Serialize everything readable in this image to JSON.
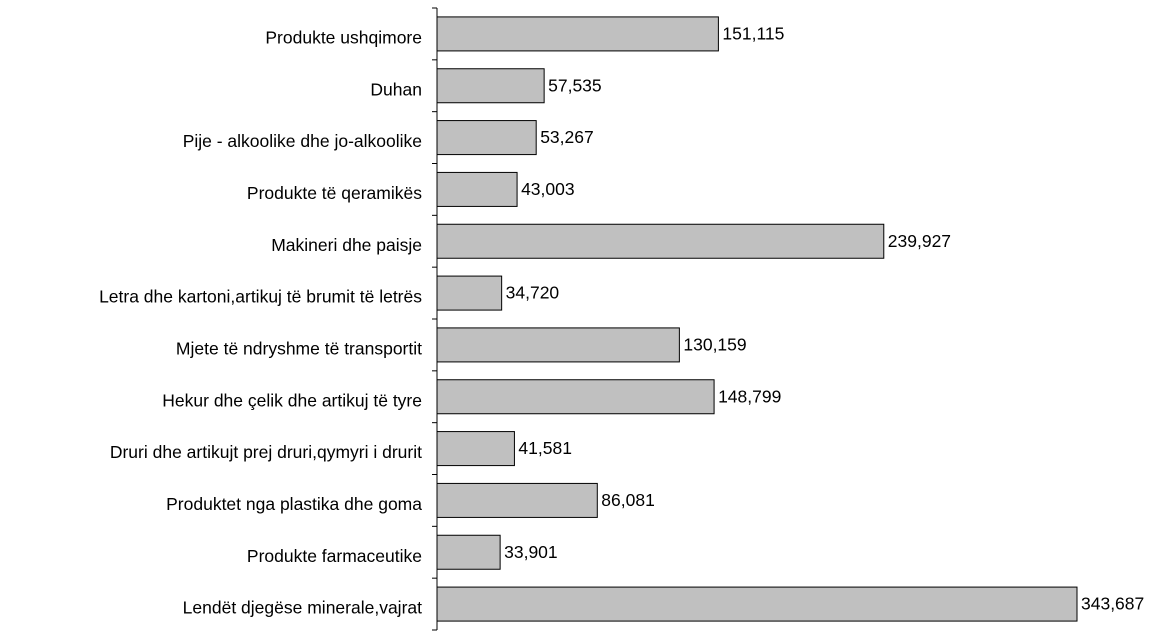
{
  "chart_data": {
    "type": "bar",
    "orientation": "horizontal",
    "categories": [
      "Produkte ushqimore",
      "Duhan",
      "Pije - alkoolike dhe jo-alkoolike",
      "Produkte të qeramikës",
      "Makineri dhe paisje",
      "Letra dhe kartoni,artikuj të brumit të letrës",
      "Mjete të ndryshme të transportit",
      "Hekur dhe çelik dhe artikuj të tyre",
      "Druri dhe artikujt prej druri,qymyri i drurit",
      "Produktet nga plastika dhe goma",
      "Produkte farmaceutike",
      "Lendët djegëse minerale,vajrat"
    ],
    "values": [
      151115,
      57535,
      53267,
      43003,
      239927,
      34720,
      130159,
      148799,
      41581,
      86081,
      33901,
      343687
    ],
    "value_labels": [
      "151,115",
      "57,535",
      "53,267",
      "43,003",
      "239,927",
      "34,720",
      "130,159",
      "148,799",
      "41,581",
      "86,081",
      "33,901",
      "343,687"
    ],
    "color": "#c0c0c0"
  }
}
